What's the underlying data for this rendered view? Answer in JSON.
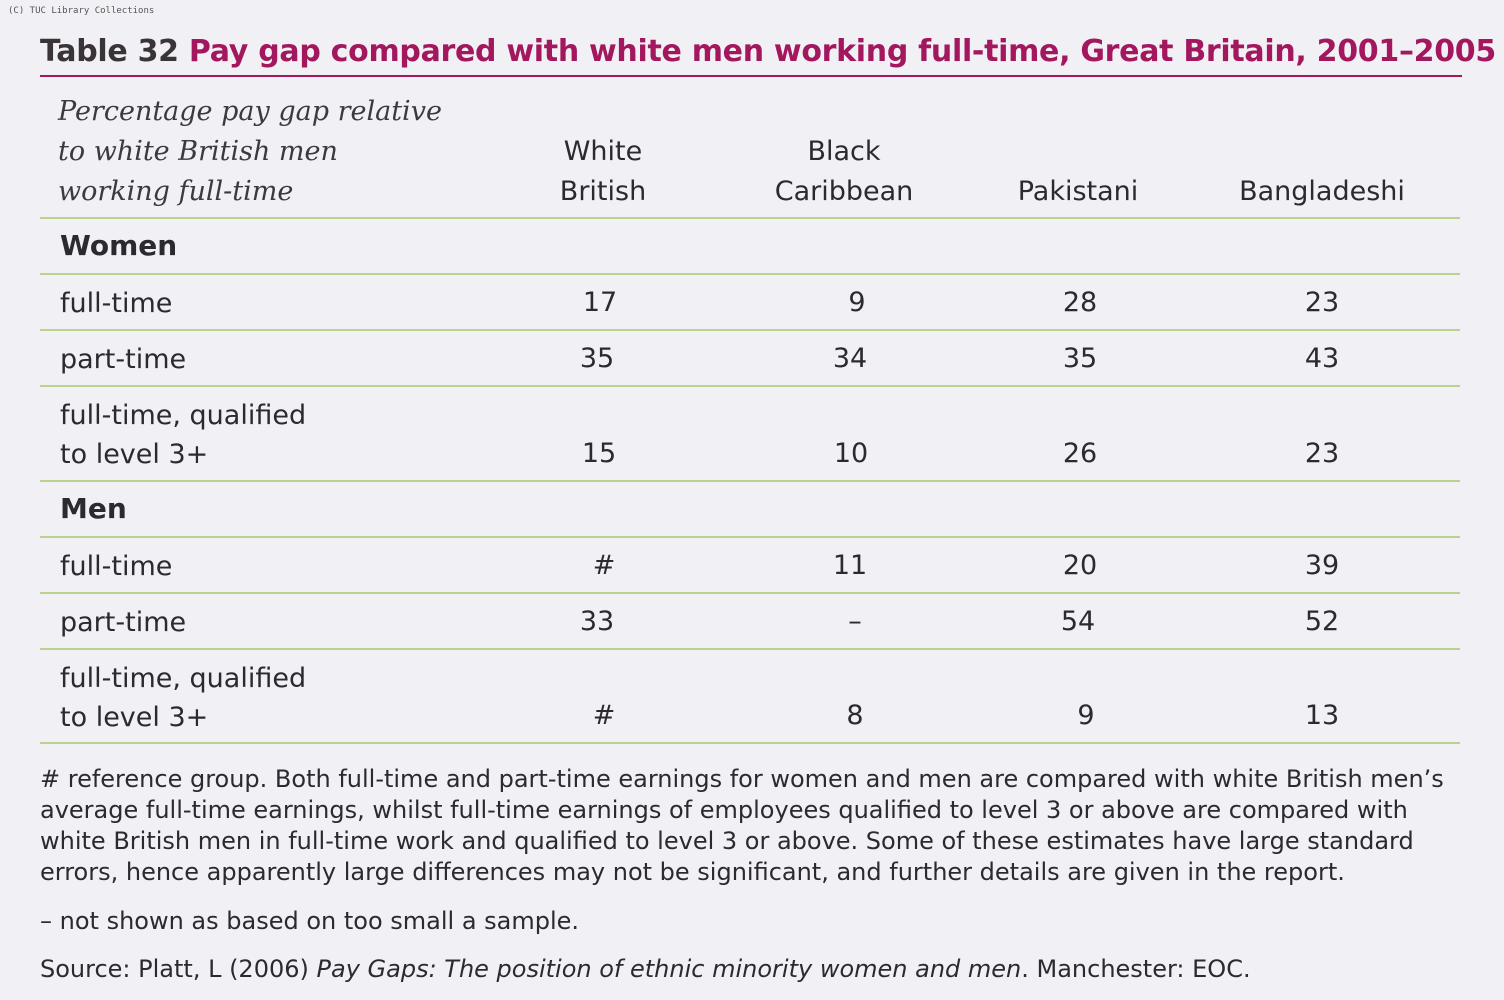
{
  "watermark": "(C) TUC Library Collections",
  "title": {
    "number": "Table 32",
    "text": "Pay gap compared with white men working full-time, Great Britain, 2001–2005"
  },
  "header_note": [
    "Percentage pay gap relative",
    "to white British men",
    "working full-time"
  ],
  "columns": [
    {
      "lines": [
        "White",
        "British"
      ]
    },
    {
      "lines": [
        "Black",
        "Caribbean"
      ]
    },
    {
      "lines": [
        "",
        "Pakistani"
      ]
    },
    {
      "lines": [
        "",
        "Bangladeshi"
      ]
    }
  ],
  "sections": [
    {
      "label": "Women",
      "rows": [
        {
          "label": [
            "full-time"
          ],
          "values": [
            "17",
            "9",
            "28",
            "23"
          ]
        },
        {
          "label": [
            "part-time"
          ],
          "values": [
            "35",
            "34",
            "35",
            "43"
          ]
        },
        {
          "label": [
            "full-time, qualified",
            "to level 3+"
          ],
          "values": [
            "15",
            "10",
            "26",
            "23"
          ]
        }
      ]
    },
    {
      "label": "Men",
      "rows": [
        {
          "label": [
            "full-time"
          ],
          "values": [
            "#",
            "11",
            "20",
            "39"
          ]
        },
        {
          "label": [
            "part-time"
          ],
          "values": [
            "33",
            "–",
            "54",
            "52"
          ]
        },
        {
          "label": [
            "full-time, qualified",
            "to level 3+"
          ],
          "values": [
            "#",
            "8",
            "9",
            "13"
          ]
        }
      ]
    }
  ],
  "footnotes": {
    "reference": "# reference group. Both full-time and part-time earnings for women and men are compared with white British men’s average full-time earnings, whilst full-time earnings of employees qualified to level 3 or above are compared with white British men in full-time work and qualified to level 3 or above. Some of these estimates have large standard errors, hence apparently large differences may not be significant, and further details are given in the report.",
    "dash": "– not shown as based on too small a sample.",
    "source_prefix": "Source: Platt, L (2006) ",
    "source_title": "Pay Gaps: The position of ethnic minority women and men",
    "source_suffix": ". Manchester: EOC."
  }
}
